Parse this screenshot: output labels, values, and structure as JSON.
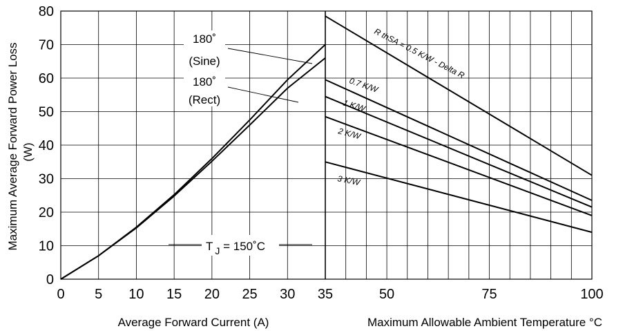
{
  "chart_data": [
    {
      "type": "line",
      "xlabel": "Average Forward Current (A)",
      "ylabel": "Maximum Average Forward Power Loss",
      "ylabel_unit": "(W)",
      "xlim": [
        0,
        35
      ],
      "ylim": [
        0,
        80
      ],
      "x_ticks": [
        "0",
        "5",
        "10",
        "15",
        "20",
        "25",
        "30",
        "35"
      ],
      "y_ticks": [
        "0",
        "10",
        "20",
        "30",
        "40",
        "50",
        "60",
        "70",
        "80"
      ],
      "grid": true,
      "series": [
        {
          "name_line1": "180˚",
          "name_line2": "(Sine)",
          "points": [
            [
              0,
              0
            ],
            [
              5,
              7
            ],
            [
              10,
              15.5
            ],
            [
              15,
              25.2
            ],
            [
              20,
              36
            ],
            [
              25,
              47.5
            ],
            [
              30,
              59.5
            ],
            [
              35,
              70
            ]
          ]
        },
        {
          "name_line1": "180˚",
          "name_line2": "(Rect)",
          "points": [
            [
              0,
              0
            ],
            [
              5,
              7
            ],
            [
              10,
              15.3
            ],
            [
              15,
              24.8
            ],
            [
              20,
              35.2
            ],
            [
              25,
              46
            ],
            [
              30,
              57
            ],
            [
              35,
              66
            ]
          ]
        }
      ],
      "annotation": {
        "main": "T",
        "sub": "J",
        "rest": " = 150˚C"
      }
    },
    {
      "type": "line",
      "xlabel": "Maximum Allowable Ambient Temperature °C",
      "xlim": [
        35,
        100
      ],
      "x_ticks": [
        "35",
        "50",
        "75",
        "100"
      ],
      "grid": true,
      "series": [
        {
          "name": "R thSA = 0.5 K/W - Delta R",
          "points": [
            [
              35,
              78.5
            ],
            [
              100,
              31
            ]
          ]
        },
        {
          "name": "0.7 K/W",
          "points": [
            [
              35,
              59.5
            ],
            [
              100,
              23.5
            ]
          ]
        },
        {
          "name": "1 K/W",
          "points": [
            [
              35,
              54.5
            ],
            [
              100,
              21.5
            ]
          ]
        },
        {
          "name": "2 K/W",
          "points": [
            [
              35,
              48.5
            ],
            [
              100,
              19
            ]
          ]
        },
        {
          "name": "3 K/W",
          "points": [
            [
              35,
              35
            ],
            [
              100,
              14
            ]
          ]
        }
      ]
    }
  ]
}
